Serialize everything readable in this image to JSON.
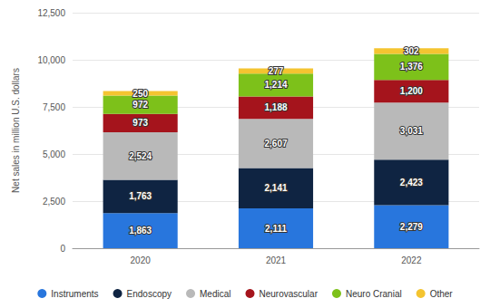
{
  "chart_data": {
    "type": "bar",
    "stacked": true,
    "data_labels": true,
    "grid": true,
    "legend": "bottom",
    "ylabel": "Net sales in million U.S. dollars",
    "categories": [
      "2020",
      "2021",
      "2022"
    ],
    "ylim": [
      0,
      12500
    ],
    "yticks": [
      0,
      {
        "value": 2500,
        "label": "2,500"
      },
      {
        "value": 5000,
        "label": "5,000"
      },
      {
        "value": 7500,
        "label": "7,500"
      },
      {
        "value": 10000,
        "label": "10,000"
      },
      {
        "value": 12500,
        "label": "12,500"
      }
    ],
    "series": [
      {
        "name": "Instruments",
        "color": "#2876dd",
        "values": [
          1863,
          2111,
          2279
        ],
        "value_labels": [
          "1,863",
          "2,111",
          "2,279"
        ]
      },
      {
        "name": "Endoscopy",
        "color": "#0f2442",
        "values": [
          1763,
          2141,
          2423
        ],
        "value_labels": [
          "1,763",
          "2,141",
          "2,423"
        ]
      },
      {
        "name": "Medical",
        "color": "#b9b9b9",
        "values": [
          2524,
          2607,
          3031
        ],
        "value_labels": [
          "2,524",
          "2,607",
          "3,031"
        ]
      },
      {
        "name": "Neurovascular",
        "color": "#a5141c",
        "values": [
          973,
          1188,
          1200
        ],
        "value_labels": [
          "973",
          "1,188",
          "1,200"
        ]
      },
      {
        "name": "Neuro Cranial",
        "color": "#7dc11a",
        "values": [
          972,
          1214,
          1376
        ],
        "value_labels": [
          "972",
          "1,214",
          "1,376"
        ]
      },
      {
        "name": "Other",
        "color": "#f4c430",
        "values": [
          250,
          277,
          302
        ]
      }
    ]
  }
}
